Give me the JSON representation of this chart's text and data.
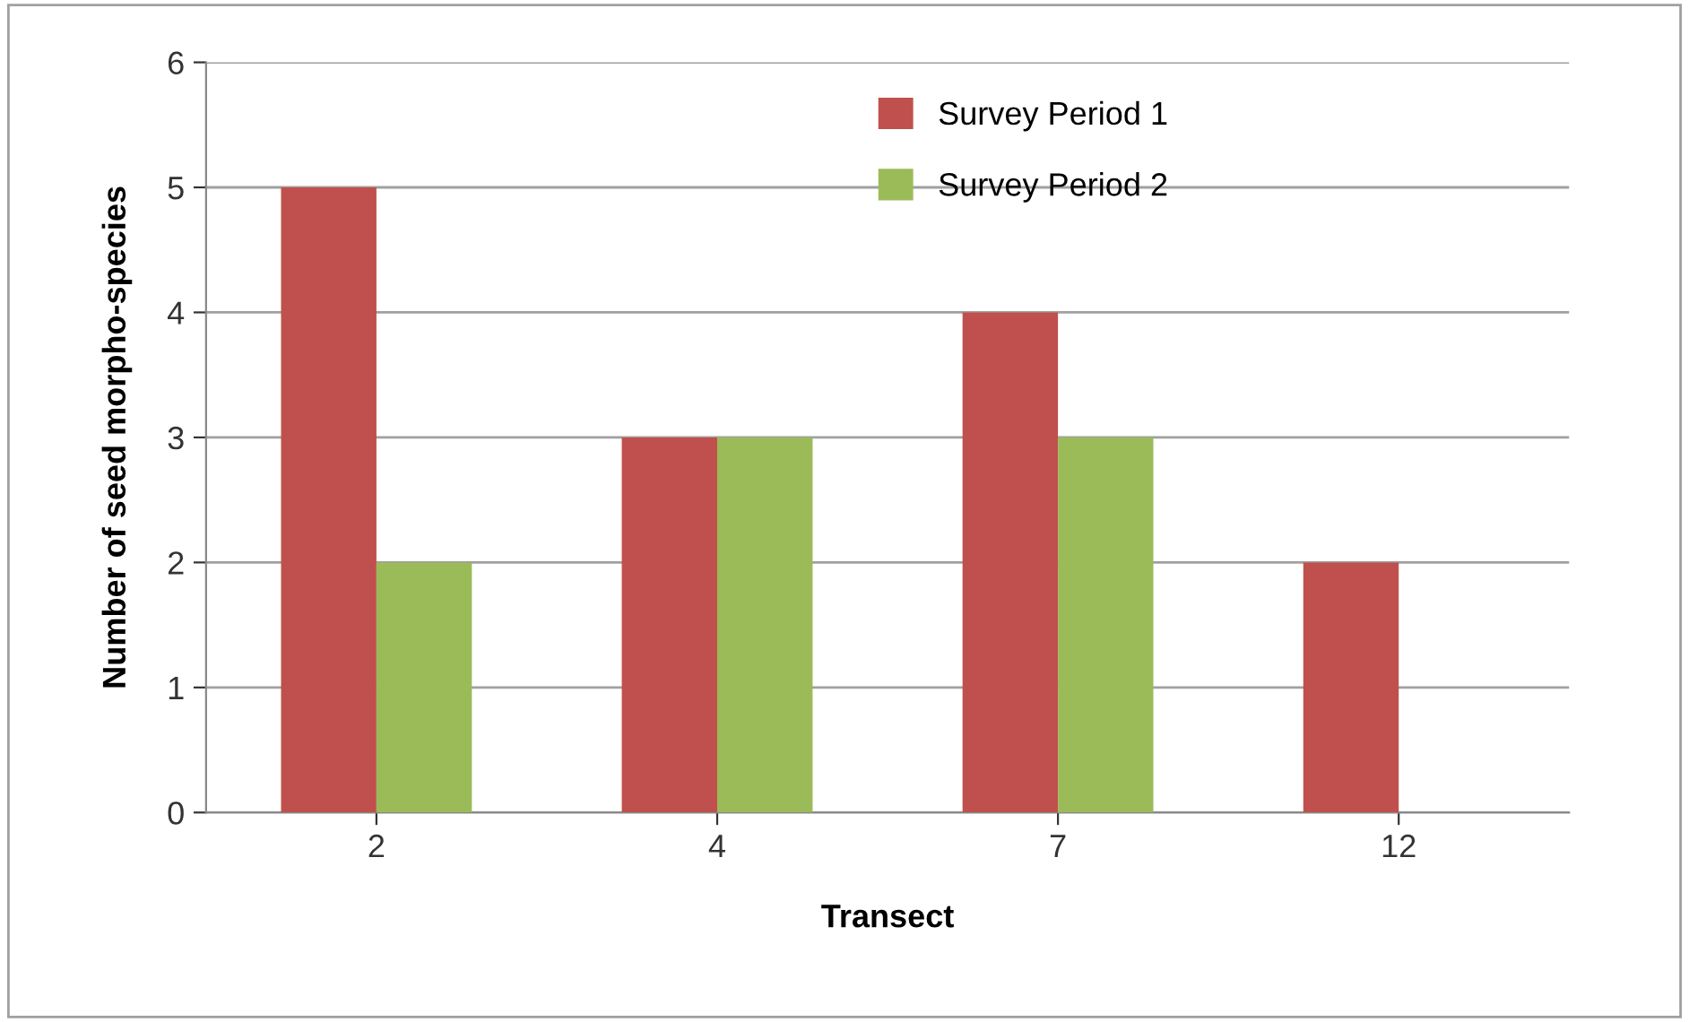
{
  "chart_data": {
    "type": "bar",
    "xlabel": "Transect",
    "ylabel": "Number of seed morpho-species",
    "categories": [
      "2",
      "4",
      "7",
      "12"
    ],
    "series": [
      {
        "name": "Survey Period 1",
        "color": "#c0504d",
        "values": [
          5,
          3,
          4,
          2
        ]
      },
      {
        "name": "Survey Period 2",
        "color": "#9bbb59",
        "values": [
          2,
          3,
          3,
          null
        ]
      }
    ],
    "ylim": [
      0,
      6
    ],
    "yticks": [
      0,
      1,
      2,
      3,
      4,
      5,
      6
    ],
    "grid": "y",
    "legend": "top"
  }
}
